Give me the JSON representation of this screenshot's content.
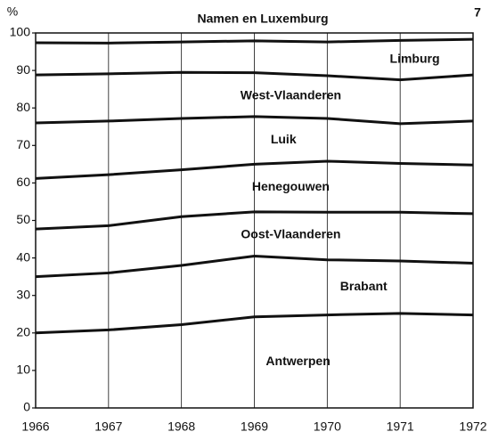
{
  "page_number": "7",
  "chart_data": {
    "type": "line",
    "stacked": true,
    "title": "Namen en Luxemburg",
    "y_label": "%",
    "x": [
      1966,
      1967,
      1968,
      1969,
      1970,
      1971,
      1972
    ],
    "xlim": [
      1966,
      1972
    ],
    "xticks": [
      1966,
      1967,
      1968,
      1969,
      1970,
      1971,
      1972
    ],
    "ylim": [
      0,
      100
    ],
    "yticks": [
      0,
      10,
      20,
      30,
      40,
      50,
      60,
      70,
      80,
      90,
      100
    ],
    "color": "#111111",
    "series": [
      {
        "name": "Antwerpen",
        "values": [
          20,
          20.8,
          22.2,
          24.3,
          24.8,
          25.2,
          24.8
        ]
      },
      {
        "name": "Brabant",
        "values": [
          15,
          15.2,
          15.8,
          16.2,
          14.7,
          14,
          13.8
        ]
      },
      {
        "name": "Oost-Vlaanderen",
        "values": [
          12.7,
          12.6,
          13,
          11.8,
          12.7,
          13,
          13.2
        ]
      },
      {
        "name": "Henegouwen",
        "values": [
          13.5,
          13.6,
          12.5,
          12.7,
          13.6,
          13,
          13
        ]
      },
      {
        "name": "Luik",
        "values": [
          14.8,
          14.3,
          13.7,
          12.7,
          11.4,
          10.6,
          11.7
        ]
      },
      {
        "name": "West-Vlaanderen",
        "values": [
          12.8,
          12.6,
          12.3,
          11.7,
          11.4,
          11.7,
          12.3
        ]
      },
      {
        "name": "Limburg",
        "values": [
          8.6,
          8.2,
          8.1,
          8.5,
          9,
          10.5,
          9.5
        ]
      }
    ]
  }
}
